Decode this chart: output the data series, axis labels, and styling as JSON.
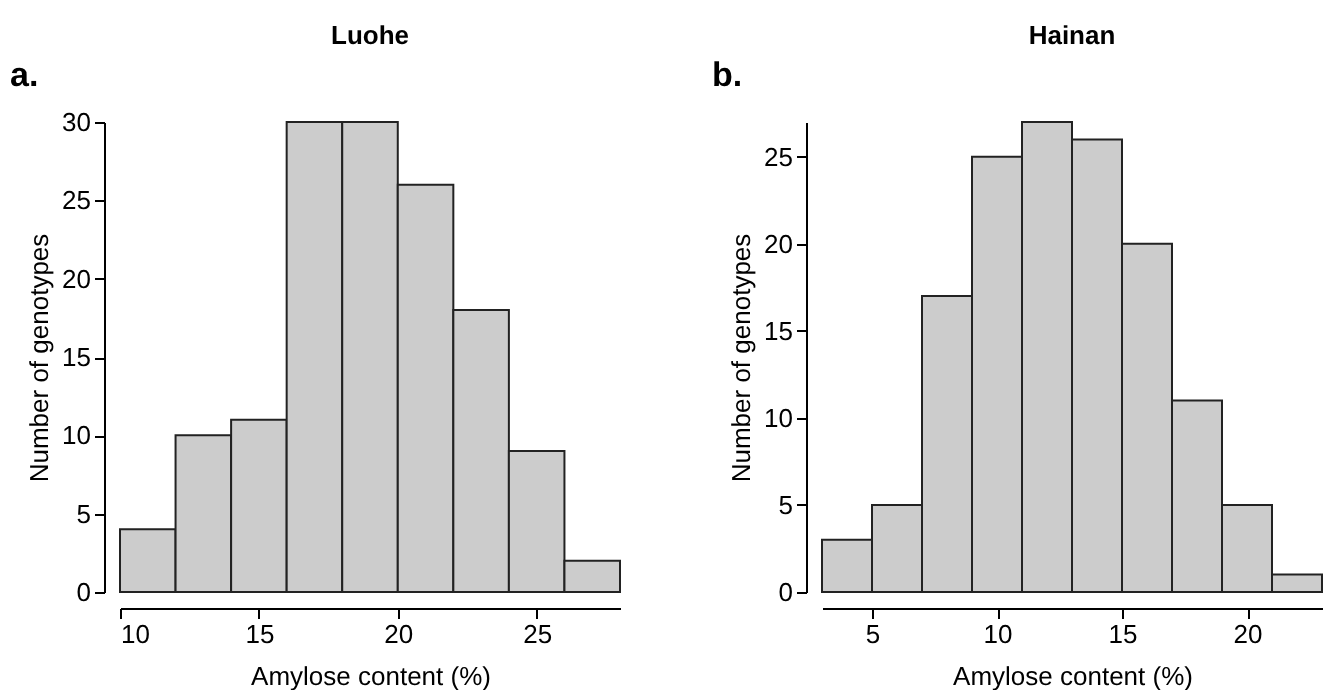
{
  "chart_data": [
    {
      "type": "histogram",
      "title": "Luohe",
      "xlabel": "Amylose content (%)",
      "ylabel": "Number of genotypes",
      "annotations": [
        "a."
      ],
      "bins": [
        10,
        12,
        14,
        16,
        18,
        20,
        22,
        24,
        26,
        28
      ],
      "values": [
        4,
        10,
        11,
        30,
        30,
        26,
        18,
        9,
        2
      ],
      "color": "#cccccc",
      "xlim": [
        10,
        28
      ],
      "xticks": [
        10,
        15,
        20,
        25
      ],
      "ylim": [
        0,
        30
      ],
      "yticks": [
        0,
        5,
        10,
        15,
        20,
        25,
        30
      ],
      "grid": false
    },
    {
      "type": "histogram",
      "title": "Hainan",
      "xlabel": "Amylose content (%)",
      "ylabel": "Number of genotypes",
      "annotations": [
        "b."
      ],
      "bins": [
        3,
        5,
        7,
        9,
        11,
        13,
        15,
        17,
        19,
        21,
        23
      ],
      "values": [
        3,
        5,
        17,
        25,
        27,
        26,
        20,
        11,
        5,
        1
      ],
      "color": "#cccccc",
      "xlim": [
        3,
        23
      ],
      "xticks": [
        5,
        10,
        15,
        20
      ],
      "ylim": [
        0,
        27
      ],
      "yticks": [
        0,
        5,
        10,
        15,
        20,
        25
      ],
      "grid": false
    }
  ]
}
